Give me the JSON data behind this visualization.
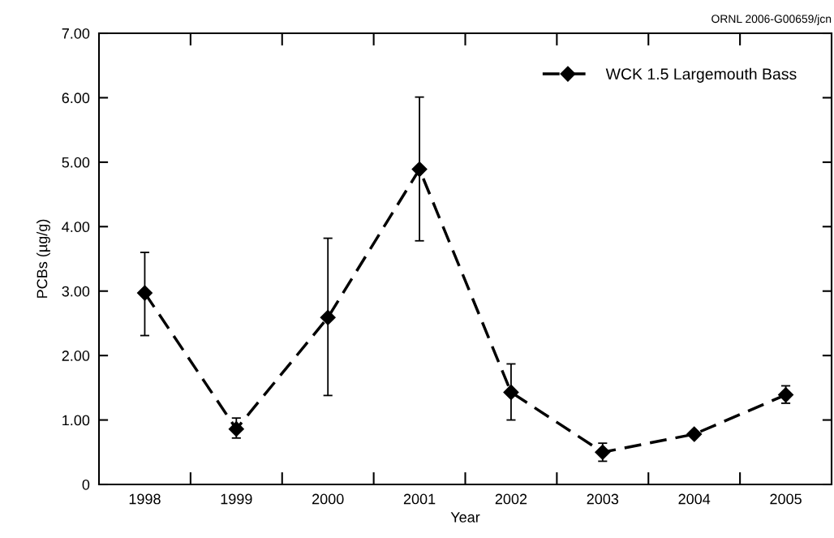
{
  "chart_data": {
    "type": "line",
    "xlabel": "Year",
    "ylabel": "PCBs (µg/g)",
    "categories": [
      "1998",
      "1999",
      "2000",
      "2001",
      "2002",
      "2003",
      "2004",
      "2005"
    ],
    "series": [
      {
        "name": "WCK 1.5 Largemouth Bass",
        "color": "#000000",
        "values": [
          2.97,
          0.86,
          2.59,
          4.89,
          1.43,
          0.5,
          0.78,
          1.39
        ],
        "errors": [
          [
            2.31,
            3.6
          ],
          [
            0.72,
            1.03
          ],
          [
            1.38,
            3.82
          ],
          [
            3.78,
            6.01
          ],
          [
            1.0,
            1.87
          ],
          [
            0.36,
            0.64
          ],
          null,
          [
            1.26,
            1.53
          ]
        ]
      }
    ],
    "ylim": [
      0,
      7
    ],
    "yticks": [
      0,
      {
        "value": 1,
        "label": "1.00"
      },
      {
        "value": 2,
        "label": "2.00"
      },
      {
        "value": 3,
        "label": "3.00"
      },
      {
        "value": 4,
        "label": "4.00"
      },
      {
        "value": 5,
        "label": "5.00"
      },
      {
        "value": 6,
        "label": "6.00"
      },
      {
        "value": 7,
        "label": "7.00"
      }
    ],
    "marker": "diamond",
    "line_style": "dashed",
    "legend": "top right",
    "grid": false,
    "annotations": [
      "ORNL 2006-G00659/jcn"
    ]
  }
}
